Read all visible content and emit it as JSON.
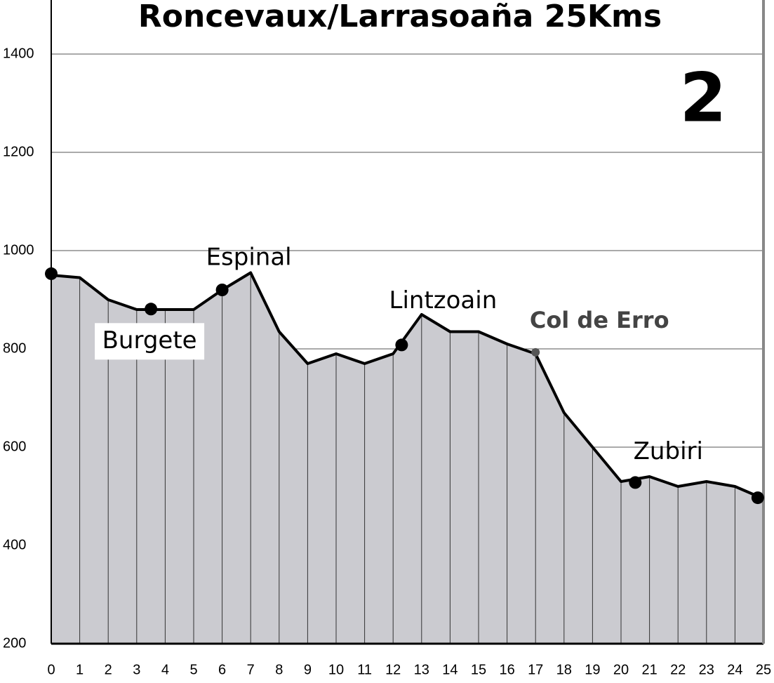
{
  "chart_data": {
    "type": "area",
    "title": "Roncevaux/Larrasoaña 25Kms",
    "stage": "2",
    "x": [
      0,
      1,
      2,
      3,
      4,
      5,
      6,
      7,
      8,
      9,
      10,
      11,
      12,
      13,
      14,
      15,
      16,
      17,
      18,
      19,
      20,
      21,
      22,
      23,
      24,
      25
    ],
    "values": [
      950,
      945,
      900,
      880,
      880,
      880,
      920,
      955,
      835,
      770,
      790,
      770,
      790,
      870,
      835,
      835,
      810,
      790,
      670,
      600,
      530,
      540,
      520,
      530,
      520,
      495
    ],
    "color": "#cbcbd0",
    "xlim": [
      0,
      25
    ],
    "ylim": [
      200,
      1500
    ],
    "xticks": [
      0,
      1,
      2,
      3,
      4,
      5,
      6,
      7,
      8,
      9,
      10,
      11,
      12,
      13,
      14,
      15,
      16,
      17,
      18,
      19,
      20,
      21,
      22,
      23,
      24,
      25
    ],
    "yticks": [
      200,
      400,
      600,
      800,
      1000,
      1200,
      1400
    ],
    "grid": true,
    "markers": {
      "x": [
        0,
        3.5,
        6,
        12.3,
        17,
        20.5,
        24.8
      ],
      "y": [
        953,
        881,
        920,
        808,
        793,
        528,
        497
      ],
      "labels": [
        null,
        "Burgete",
        "Espinal",
        "Lintzoain",
        "Col de Erro",
        "Zubiri",
        null
      ]
    }
  }
}
